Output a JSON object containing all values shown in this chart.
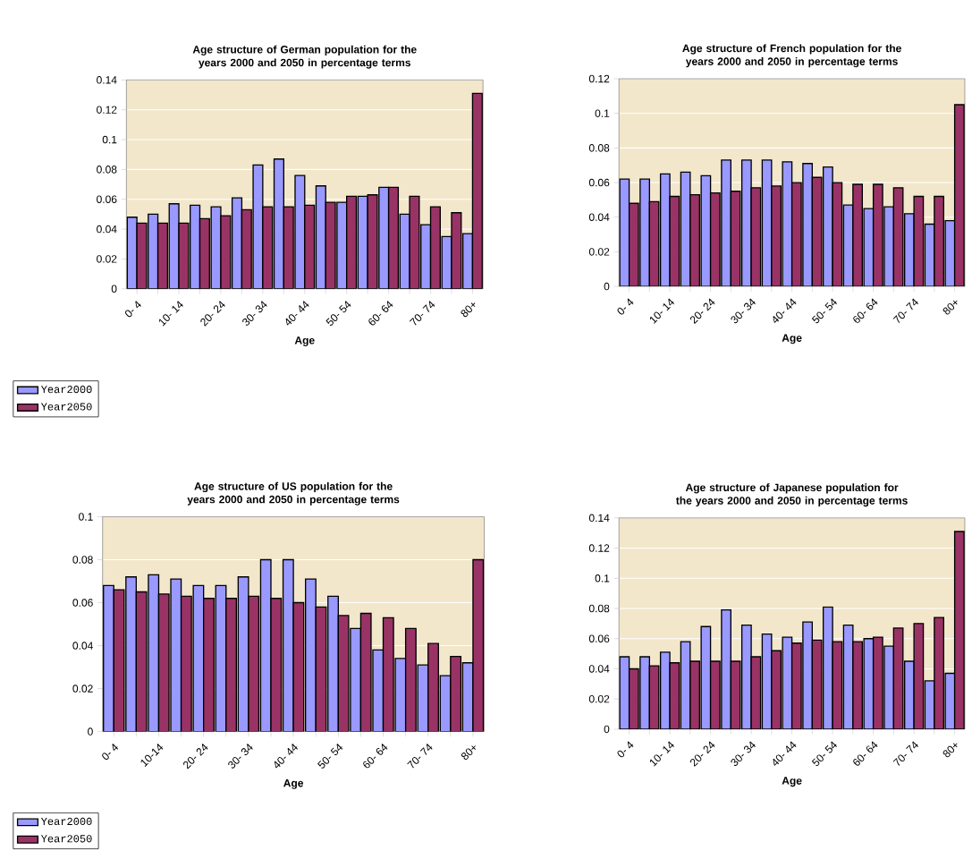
{
  "chart_data": [
    {
      "type": "bar",
      "title": "Age structure of German population for the years 2000 and 2050 in percentage terms",
      "xlabel": "Age",
      "categories": [
        "0- 4",
        null,
        "10- 14",
        null,
        "20- 24",
        null,
        "30- 34",
        null,
        "40- 44",
        null,
        "50- 54",
        null,
        "60- 64",
        null,
        "70- 74",
        null,
        "80+"
      ],
      "ylim": [
        0,
        0.14
      ],
      "yticks": [
        0,
        0.02,
        0.04,
        0.06,
        0.08,
        0.1,
        0.12,
        0.14
      ],
      "grid": "y",
      "legend": "bottom left",
      "series": [
        {
          "name": "Year2000",
          "color": "#9999ff",
          "values": [
            0.048,
            0.05,
            0.057,
            0.056,
            0.055,
            0.061,
            0.083,
            0.087,
            0.076,
            0.069,
            0.058,
            0.062,
            0.068,
            0.05,
            0.043,
            0.035,
            0.037
          ]
        },
        {
          "name": "Year2050",
          "color": "#993366",
          "values": [
            0.044,
            0.044,
            0.044,
            0.047,
            0.049,
            0.053,
            0.055,
            0.055,
            0.056,
            0.058,
            0.062,
            0.063,
            0.068,
            0.062,
            0.055,
            0.051,
            0.131
          ]
        }
      ]
    },
    {
      "type": "bar",
      "title": "Age structure of French population for the years 2000 and 2050 in percentage terms",
      "xlabel": "Age",
      "categories": [
        "0- 4",
        null,
        "10- 14",
        null,
        "20- 24",
        null,
        "30- 34",
        null,
        "40- 44",
        null,
        "50- 54",
        null,
        "60- 64",
        null,
        "70- 74",
        null,
        "80+"
      ],
      "ylim": [
        0,
        0.12
      ],
      "yticks": [
        0,
        0.02,
        0.04,
        0.06,
        0.08,
        0.1,
        0.12
      ],
      "grid": "y",
      "legend": "bottom left",
      "series": [
        {
          "name": "Year2000",
          "color": "#9999ff",
          "values": [
            0.062,
            0.062,
            0.065,
            0.066,
            0.064,
            0.073,
            0.073,
            0.073,
            0.072,
            0.071,
            0.069,
            0.047,
            0.045,
            0.046,
            0.042,
            0.036,
            0.038
          ]
        },
        {
          "name": "Year2050",
          "color": "#993366",
          "values": [
            0.048,
            0.049,
            0.052,
            0.053,
            0.054,
            0.055,
            0.057,
            0.058,
            0.06,
            0.063,
            0.06,
            0.059,
            0.059,
            0.057,
            0.052,
            0.052,
            0.105
          ]
        }
      ]
    },
    {
      "type": "bar",
      "title": "Age structure of US population for the years 2000 and 2050 in percentage terms",
      "xlabel": "Age",
      "categories": [
        "0- 4",
        null,
        "10-14",
        null,
        "20- 24",
        null,
        "30- 34",
        null,
        "40- 44",
        null,
        "50- 54",
        null,
        "60- 64",
        null,
        "70- 74",
        null,
        "80+"
      ],
      "ylim": [
        0,
        0.1
      ],
      "yticks": [
        0,
        0.02,
        0.04,
        0.06,
        0.08,
        0.1
      ],
      "grid": "y",
      "legend": "bottom left",
      "series": [
        {
          "name": "Year2000",
          "color": "#9999ff",
          "values": [
            0.068,
            0.072,
            0.073,
            0.071,
            0.068,
            0.068,
            0.072,
            0.08,
            0.08,
            0.071,
            0.063,
            0.048,
            0.038,
            0.034,
            0.031,
            0.026,
            0.032
          ]
        },
        {
          "name": "Year2050",
          "color": "#993366",
          "values": [
            0.066,
            0.065,
            0.064,
            0.063,
            0.062,
            0.062,
            0.063,
            0.062,
            0.06,
            0.058,
            0.054,
            0.055,
            0.053,
            0.048,
            0.041,
            0.035,
            0.08
          ]
        }
      ]
    },
    {
      "type": "bar",
      "title": "Age structure of Japanese population for the years 2000 and 2050 in percentage terms",
      "xlabel": "Age",
      "categories": [
        "0- 4",
        null,
        "10- 14",
        null,
        "20- 24",
        null,
        "30- 34",
        null,
        "40- 44",
        null,
        "50- 54",
        null,
        "60- 64",
        null,
        "70- 74",
        null,
        "80+"
      ],
      "ylim": [
        0,
        0.14
      ],
      "yticks": [
        0,
        0.02,
        0.04,
        0.06,
        0.08,
        0.1,
        0.12,
        0.14
      ],
      "grid": "y",
      "legend": "bottom left",
      "series": [
        {
          "name": "Year2000",
          "color": "#9999ff",
          "values": [
            0.048,
            0.048,
            0.051,
            0.058,
            0.068,
            0.079,
            0.069,
            0.063,
            0.061,
            0.071,
            0.081,
            0.069,
            0.06,
            0.055,
            0.045,
            0.032,
            0.037
          ]
        },
        {
          "name": "Year2050",
          "color": "#993366",
          "values": [
            0.04,
            0.042,
            0.044,
            0.045,
            0.045,
            0.045,
            0.048,
            0.052,
            0.057,
            0.059,
            0.058,
            0.058,
            0.061,
            0.067,
            0.07,
            0.074,
            0.131
          ]
        }
      ]
    }
  ]
}
